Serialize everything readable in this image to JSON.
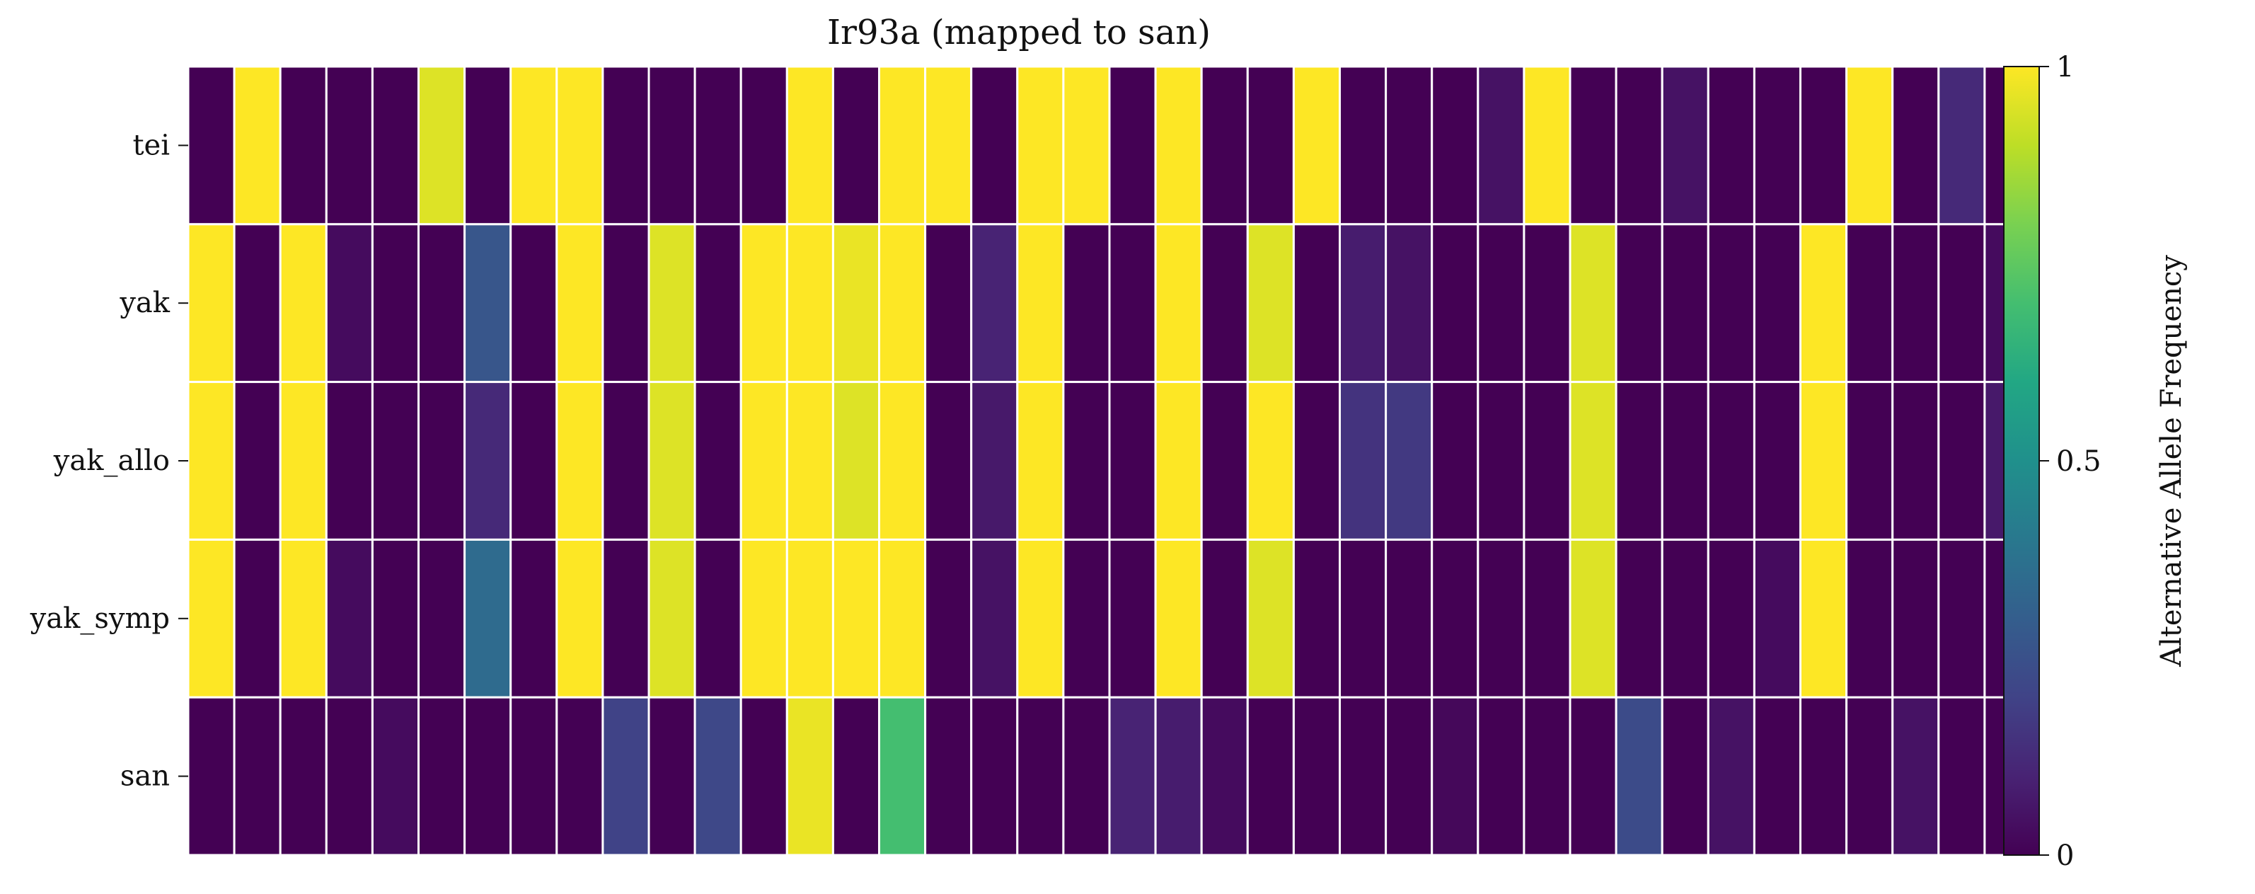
{
  "chart_data": {
    "type": "heatmap",
    "title": "Ir93a (mapped to san)",
    "rows": [
      "tei",
      "yak",
      "yak_allo",
      "yak_symp",
      "san"
    ],
    "n_columns": 40,
    "values": [
      [
        0,
        1,
        0,
        0,
        0,
        0.95,
        0,
        1,
        1,
        0,
        0,
        0,
        0,
        1,
        0,
        1,
        1,
        0,
        1,
        1,
        0,
        1,
        0,
        0,
        1,
        0,
        0,
        0,
        0.05,
        1,
        0,
        0,
        0.05,
        0,
        0,
        0,
        1,
        0,
        0.12,
        0
      ],
      [
        1,
        0,
        1,
        0.03,
        0,
        0,
        0.27,
        0,
        1,
        0,
        0.95,
        0,
        1,
        1,
        0.97,
        1,
        0,
        0.1,
        1,
        0,
        0,
        1,
        0,
        0.95,
        0,
        0.08,
        0.05,
        0,
        0,
        0,
        0.95,
        0,
        0,
        0,
        0,
        1,
        0,
        0,
        0,
        0.03
      ],
      [
        1,
        0,
        1,
        0,
        0,
        0,
        0.12,
        0,
        1,
        0,
        0.95,
        0,
        1,
        1,
        0.95,
        1,
        0,
        0.07,
        1,
        0,
        0,
        1,
        0,
        1,
        0,
        0.15,
        0.17,
        0,
        0,
        0,
        0.95,
        0,
        0,
        0,
        0,
        1,
        0,
        0,
        0,
        0.07
      ],
      [
        1,
        0,
        1,
        0.03,
        0,
        0,
        0.35,
        0,
        1,
        0,
        0.95,
        0,
        1,
        1,
        1,
        1,
        0,
        0.05,
        1,
        0,
        0,
        1,
        0,
        0.95,
        0,
        0,
        0,
        0,
        0,
        0,
        0.95,
        0,
        0,
        0,
        0.03,
        1,
        0,
        0,
        0,
        0
      ],
      [
        0,
        0,
        0,
        0,
        0.03,
        0,
        0,
        0,
        0,
        0.2,
        0,
        0.22,
        0,
        0.97,
        0,
        0.7,
        0,
        0,
        0,
        0,
        0.1,
        0.08,
        0.03,
        0,
        0,
        0,
        0,
        0.02,
        0,
        0,
        0,
        0.23,
        0,
        0.05,
        0,
        0,
        0,
        0.05,
        0,
        0
      ]
    ],
    "colormap": "viridis",
    "vmin": 0,
    "vmax": 1,
    "colorbar": {
      "label": "Alternative Allele Frequency",
      "ticks": [
        "0",
        "0.5",
        "1"
      ],
      "tick_values": [
        0,
        0.5,
        1
      ]
    },
    "grid": true,
    "cell_edge_color": "#ffffff"
  }
}
